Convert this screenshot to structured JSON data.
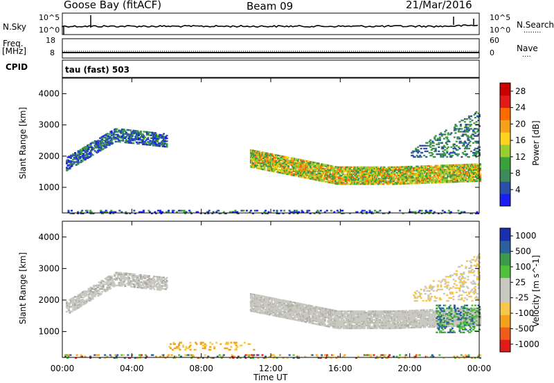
{
  "header": {
    "station": "Goose Bay (fitACF)",
    "beam": "Beam 09",
    "date": "21/Mar/2016"
  },
  "side_labels": {
    "nsky": "N.Sky",
    "nsearch": "N.Search",
    "freq": "Freq.",
    "freq_unit": "[MHz]",
    "nave": "Nave",
    "cpid": "CPID",
    "cpid_value": "tau (fast) 503",
    "dots": "........",
    "dots_short": "...."
  },
  "small_axes": {
    "noise_left_ticks": [
      "10^5",
      "10^0"
    ],
    "noise_right_ticks": [
      "10^5",
      "10^0"
    ],
    "freq_left_ticks": [
      "18",
      "8"
    ],
    "freq_right_ticks": [
      "60",
      "0"
    ]
  },
  "colors": {
    "power": [
      "#1c1cf5",
      "#2a4fa8",
      "#3f8a5a",
      "#3aa23a",
      "#9acd32",
      "#ffd21f",
      "#f5a11a",
      "#ff6a00",
      "#e21a1a",
      "#cc0000"
    ],
    "velocity": [
      "#e11a1a",
      "#f05a1a",
      "#f5a01a",
      "#f5c84a",
      "#c8c8c0",
      "#c8c8c0",
      "#4fc23a",
      "#3a9a4a",
      "#2a5fa0",
      "#1a2fb0"
    ],
    "axis": "#000000"
  },
  "chart_data": [
    {
      "type": "heatmap",
      "title": "",
      "xlabel": "Time UT",
      "ylabel": "Slant Range [km]",
      "x_ticks": [
        "00:00",
        "04:00",
        "08:00",
        "12:00",
        "16:00",
        "20:00",
        "00:00"
      ],
      "xlim_hours": [
        0,
        24
      ],
      "ylim_km": [
        180,
        4500
      ],
      "y_ticks": [
        "1000",
        "2000",
        "3000",
        "4000"
      ],
      "colorbar": {
        "label": "Power [dB]",
        "ticks": [
          "4",
          "8",
          "12",
          "16",
          "20",
          "24",
          "28"
        ],
        "range": [
          0,
          30
        ]
      },
      "echo_regions": [
        {
          "t_start": 0.2,
          "t_end": 6.0,
          "range_km": [
            1500,
            2900
          ],
          "level": "moderate"
        },
        {
          "t_start": 10.8,
          "t_end": 24.0,
          "range_km": [
            1100,
            2000
          ],
          "level": "strong"
        },
        {
          "t_start": 20.0,
          "t_end": 24.0,
          "range_km": [
            2000,
            3600
          ],
          "level": "weak"
        },
        {
          "t_start": 0.0,
          "t_end": 24.0,
          "range_km": [
            180,
            300
          ],
          "level": "ground-scatter"
        }
      ]
    },
    {
      "type": "heatmap",
      "title": "",
      "xlabel": "Time UT",
      "ylabel": "Slant Range [km]",
      "x_ticks": [
        "00:00",
        "04:00",
        "08:00",
        "12:00",
        "16:00",
        "20:00",
        "00:00"
      ],
      "xlim_hours": [
        0,
        24
      ],
      "ylim_km": [
        180,
        4500
      ],
      "y_ticks": [
        "1000",
        "2000",
        "3000",
        "4000"
      ],
      "colorbar": {
        "label": "Velocity [m s^-1]",
        "ticks": [
          "1000",
          "500",
          "100",
          "25",
          "-25",
          "-100",
          "-500",
          "-1000"
        ]
      },
      "echo_regions": [
        {
          "t_start": 0.2,
          "t_end": 6.0,
          "range_km": [
            1500,
            2900
          ],
          "velocity": "near-zero"
        },
        {
          "t_start": 10.8,
          "t_end": 24.0,
          "range_km": [
            1100,
            2000
          ],
          "velocity": "near-zero"
        },
        {
          "t_start": 21.5,
          "t_end": 24.0,
          "range_km": [
            1000,
            1900
          ],
          "velocity": "positive"
        }
      ]
    }
  ]
}
